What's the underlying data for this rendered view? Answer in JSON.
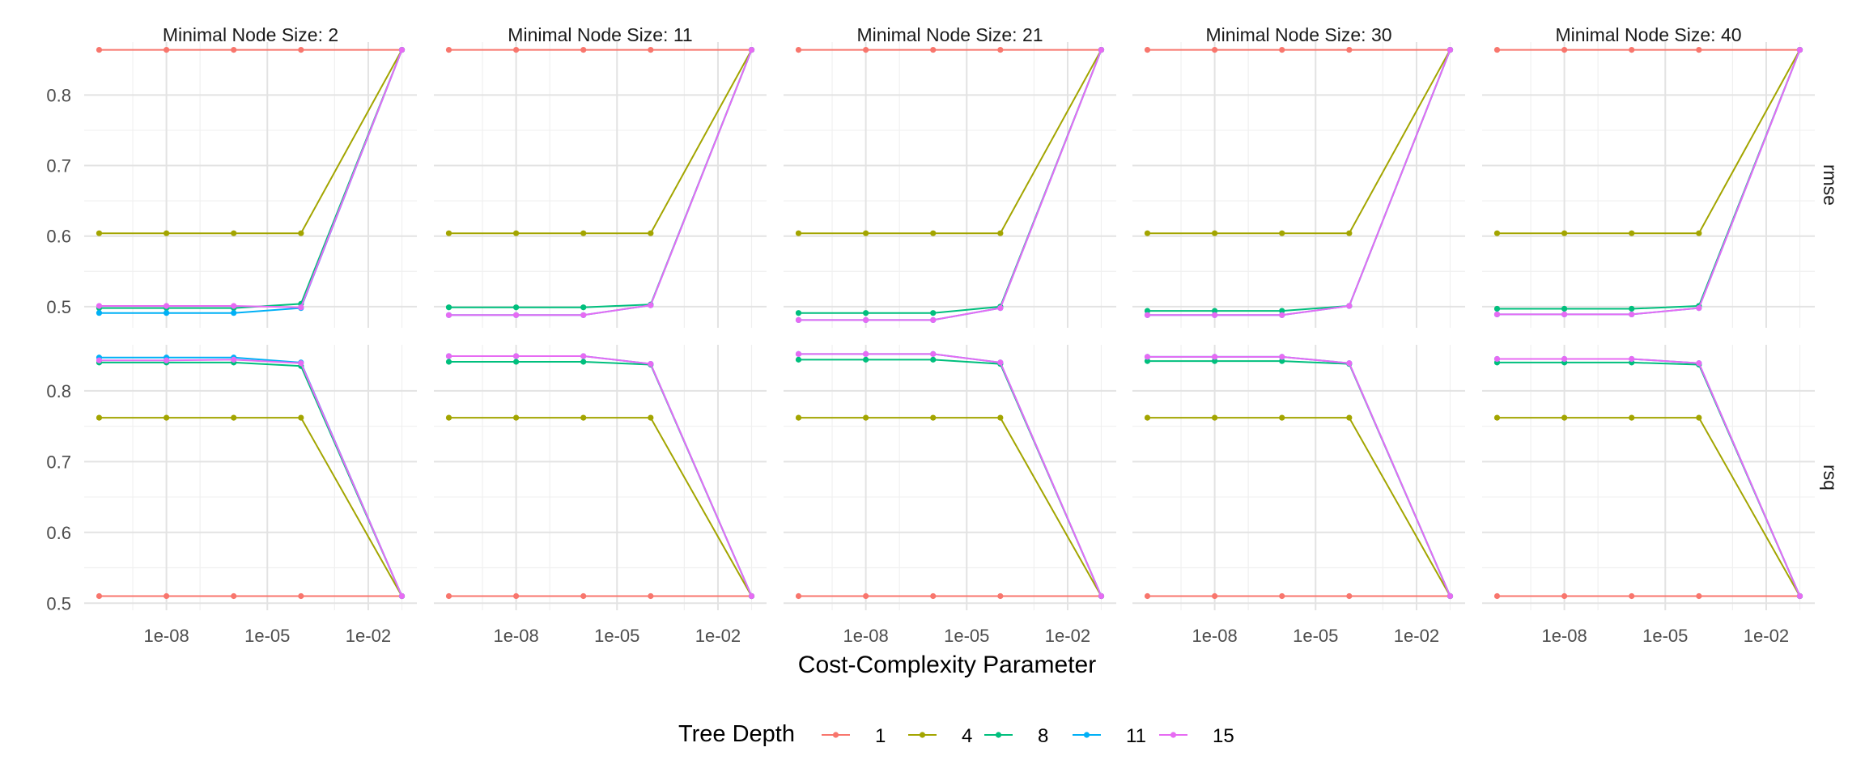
{
  "chart_data": {
    "type": "line",
    "xlabel": "Cost-Complexity Parameter",
    "x_scale": "log10",
    "x_tick_labels": [
      "1e-08",
      "1e-05",
      "1e-02"
    ],
    "x_tick_values": [
      1e-08,
      1e-05,
      0.01
    ],
    "x": [
      1e-10,
      1e-08,
      1e-06,
      0.0001,
      0.1
    ],
    "xlim": [
      1e-10,
      0.1
    ],
    "facet_cols": [
      {
        "label": "Minimal Node Size: 2"
      },
      {
        "label": "Minimal Node Size: 11"
      },
      {
        "label": "Minimal Node Size: 21"
      },
      {
        "label": "Minimal Node Size: 30"
      },
      {
        "label": "Minimal Node Size: 40"
      }
    ],
    "facet_rows": [
      {
        "label": "rmse",
        "ylim": [
          0.47,
          0.875
        ],
        "y_ticks": [
          0.5,
          0.6,
          0.7,
          0.8
        ],
        "y_tick_labels": [
          "0.5",
          "0.6",
          "0.7",
          "0.8"
        ]
      },
      {
        "label": "rsq",
        "ylim": [
          0.49,
          0.865
        ],
        "y_ticks": [
          0.5,
          0.6,
          0.7,
          0.8
        ],
        "y_tick_labels": [
          "0.5",
          "0.6",
          "0.7",
          "0.8"
        ]
      }
    ],
    "legend": {
      "title": "Tree Depth",
      "position": "bottom",
      "entries": [
        {
          "label": "1",
          "color": "#F8766D"
        },
        {
          "label": "4",
          "color": "#A3A500"
        },
        {
          "label": "8",
          "color": "#00BF7D"
        },
        {
          "label": "11",
          "color": "#00B0F6"
        },
        {
          "label": "15",
          "color": "#E76BF3"
        }
      ]
    },
    "panels": [
      [
        {
          "series": [
            {
              "values": [
                0.864,
                0.864,
                0.864,
                0.864,
                0.864
              ]
            },
            {
              "values": [
                0.604,
                0.604,
                0.604,
                0.604,
                0.864
              ]
            },
            {
              "values": [
                0.498,
                0.498,
                0.498,
                0.504,
                0.864
              ]
            },
            {
              "values": [
                0.491,
                0.491,
                0.491,
                0.498,
                0.864
              ]
            },
            {
              "values": [
                0.501,
                0.501,
                0.501,
                0.499,
                0.864
              ]
            }
          ]
        },
        {
          "series": [
            {
              "values": [
                0.864,
                0.864,
                0.864,
                0.864,
                0.864
              ]
            },
            {
              "values": [
                0.604,
                0.604,
                0.604,
                0.604,
                0.864
              ]
            },
            {
              "values": [
                0.499,
                0.499,
                0.499,
                0.503,
                0.864
              ]
            },
            {
              "values": [
                0.488,
                0.488,
                0.488,
                0.502,
                0.864
              ]
            },
            {
              "values": [
                0.488,
                0.488,
                0.488,
                0.502,
                0.864
              ]
            }
          ]
        },
        {
          "series": [
            {
              "values": [
                0.864,
                0.864,
                0.864,
                0.864,
                0.864
              ]
            },
            {
              "values": [
                0.604,
                0.604,
                0.604,
                0.604,
                0.864
              ]
            },
            {
              "values": [
                0.491,
                0.491,
                0.491,
                0.5,
                0.864
              ]
            },
            {
              "values": [
                0.481,
                0.481,
                0.481,
                0.498,
                0.864
              ]
            },
            {
              "values": [
                0.481,
                0.481,
                0.481,
                0.498,
                0.864
              ]
            }
          ]
        },
        {
          "series": [
            {
              "values": [
                0.864,
                0.864,
                0.864,
                0.864,
                0.864
              ]
            },
            {
              "values": [
                0.604,
                0.604,
                0.604,
                0.604,
                0.864
              ]
            },
            {
              "values": [
                0.494,
                0.494,
                0.494,
                0.501,
                0.864
              ]
            },
            {
              "values": [
                0.488,
                0.488,
                0.488,
                0.501,
                0.864
              ]
            },
            {
              "values": [
                0.488,
                0.488,
                0.488,
                0.501,
                0.864
              ]
            }
          ]
        },
        {
          "series": [
            {
              "values": [
                0.864,
                0.864,
                0.864,
                0.864,
                0.864
              ]
            },
            {
              "values": [
                0.604,
                0.604,
                0.604,
                0.604,
                0.864
              ]
            },
            {
              "values": [
                0.497,
                0.497,
                0.497,
                0.501,
                0.864
              ]
            },
            {
              "values": [
                0.489,
                0.489,
                0.489,
                0.498,
                0.864
              ]
            },
            {
              "values": [
                0.489,
                0.489,
                0.489,
                0.498,
                0.864
              ]
            }
          ]
        }
      ],
      [
        {
          "series": [
            {
              "values": [
                0.51,
                0.51,
                0.51,
                0.51,
                0.51
              ]
            },
            {
              "values": [
                0.762,
                0.762,
                0.762,
                0.762,
                0.51
              ]
            },
            {
              "values": [
                0.84,
                0.84,
                0.84,
                0.835,
                0.51
              ]
            },
            {
              "values": [
                0.847,
                0.847,
                0.847,
                0.84,
                0.51
              ]
            },
            {
              "values": [
                0.843,
                0.843,
                0.844,
                0.839,
                0.51
              ]
            }
          ]
        },
        {
          "series": [
            {
              "values": [
                0.51,
                0.51,
                0.51,
                0.51,
                0.51
              ]
            },
            {
              "values": [
                0.762,
                0.762,
                0.762,
                0.762,
                0.51
              ]
            },
            {
              "values": [
                0.841,
                0.841,
                0.841,
                0.837,
                0.51
              ]
            },
            {
              "values": [
                0.849,
                0.849,
                0.849,
                0.838,
                0.51
              ]
            },
            {
              "values": [
                0.849,
                0.849,
                0.849,
                0.838,
                0.51
              ]
            }
          ]
        },
        {
          "series": [
            {
              "values": [
                0.51,
                0.51,
                0.51,
                0.51,
                0.51
              ]
            },
            {
              "values": [
                0.762,
                0.762,
                0.762,
                0.762,
                0.51
              ]
            },
            {
              "values": [
                0.844,
                0.844,
                0.844,
                0.838,
                0.51
              ]
            },
            {
              "values": [
                0.852,
                0.852,
                0.852,
                0.84,
                0.51
              ]
            },
            {
              "values": [
                0.852,
                0.852,
                0.852,
                0.84,
                0.51
              ]
            }
          ]
        },
        {
          "series": [
            {
              "values": [
                0.51,
                0.51,
                0.51,
                0.51,
                0.51
              ]
            },
            {
              "values": [
                0.762,
                0.762,
                0.762,
                0.762,
                0.51
              ]
            },
            {
              "values": [
                0.842,
                0.842,
                0.842,
                0.838,
                0.51
              ]
            },
            {
              "values": [
                0.848,
                0.848,
                0.848,
                0.839,
                0.51
              ]
            },
            {
              "values": [
                0.848,
                0.848,
                0.848,
                0.839,
                0.51
              ]
            }
          ]
        },
        {
          "series": [
            {
              "values": [
                0.51,
                0.51,
                0.51,
                0.51,
                0.51
              ]
            },
            {
              "values": [
                0.762,
                0.762,
                0.762,
                0.762,
                0.51
              ]
            },
            {
              "values": [
                0.84,
                0.84,
                0.84,
                0.837,
                0.51
              ]
            },
            {
              "values": [
                0.845,
                0.845,
                0.845,
                0.839,
                0.51
              ]
            },
            {
              "values": [
                0.845,
                0.845,
                0.845,
                0.839,
                0.51
              ]
            }
          ]
        }
      ]
    ]
  }
}
